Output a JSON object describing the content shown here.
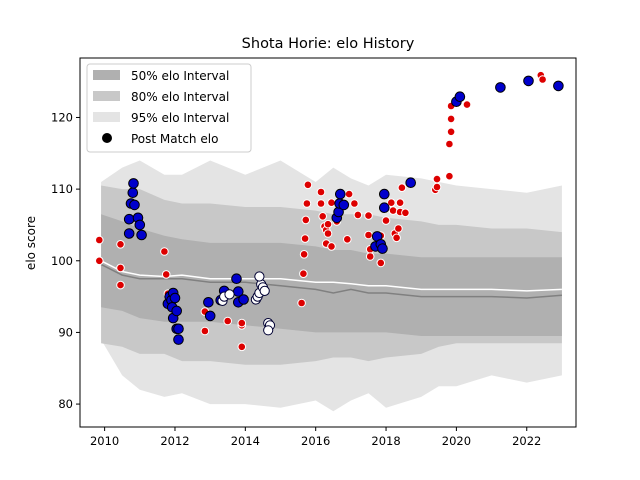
{
  "chart_data": {
    "type": "scatter",
    "title": "Shota Horie: elo History",
    "xlabel": "",
    "ylabel": "elo score",
    "xlim": [
      2009.3,
      2023.4
    ],
    "ylim": [
      76.8,
      128.3
    ],
    "x_ticks": [
      2010,
      2012,
      2014,
      2016,
      2018,
      2020,
      2022
    ],
    "y_ticks": [
      80,
      90,
      100,
      110,
      120
    ],
    "legend": {
      "position": "top-left",
      "entries": [
        "50% elo Interval",
        "80% elo Interval",
        "95% elo Interval",
        "Post Match elo"
      ]
    },
    "colors": {
      "band50": "#b0b0b0",
      "band80": "#c8c8c8",
      "band95": "#e4e4e4",
      "median_line": "#808080",
      "mean_line": "#ffffff",
      "win": "#0000cc",
      "loss": "#dd0000",
      "draw": "#ffffff"
    },
    "bands": {
      "x": [
        2009.9,
        2010.5,
        2011.0,
        2011.7,
        2012.2,
        2013.0,
        2014.0,
        2015.0,
        2016.0,
        2016.5,
        2017.0,
        2017.5,
        2018.0,
        2019.0,
        2019.5,
        2020.0,
        2021.0,
        2022.0,
        2023.0
      ],
      "p95_lo": [
        89.0,
        84.0,
        82.0,
        81.0,
        81.5,
        80.0,
        80.0,
        79.5,
        80.5,
        79.0,
        80.5,
        81.5,
        79.5,
        81.0,
        82.5,
        82.5,
        84.0,
        83.0,
        84.0
      ],
      "p95_hi": [
        111.0,
        113.0,
        114.0,
        112.0,
        112.0,
        114.0,
        112.0,
        114.0,
        111.0,
        113.0,
        111.5,
        110.5,
        112.0,
        111.5,
        111.0,
        110.5,
        110.0,
        109.5,
        110.5
      ],
      "p80_lo": [
        88.5,
        88.0,
        87.0,
        87.0,
        86.0,
        86.0,
        85.5,
        85.5,
        86.0,
        86.5,
        86.5,
        86.0,
        86.5,
        87.0,
        88.0,
        88.5,
        88.5,
        88.5,
        88.5
      ],
      "p80_hi": [
        110.5,
        110.0,
        110.0,
        108.5,
        108.0,
        108.0,
        107.5,
        107.5,
        107.0,
        106.5,
        106.5,
        106.5,
        106.0,
        105.5,
        105.0,
        105.0,
        104.5,
        104.5,
        104.0
      ],
      "p50_lo": [
        93.5,
        93.0,
        92.0,
        91.5,
        91.5,
        91.5,
        91.0,
        90.5,
        90.0,
        90.0,
        90.0,
        90.0,
        90.0,
        89.5,
        89.5,
        89.5,
        89.5,
        89.5,
        89.5
      ],
      "p50_hi": [
        106.5,
        105.5,
        104.5,
        103.5,
        103.0,
        102.5,
        102.5,
        102.5,
        102.0,
        101.5,
        101.5,
        101.0,
        101.0,
        100.5,
        100.5,
        100.5,
        100.5,
        100.5,
        100.5
      ],
      "median": [
        99.5,
        98.0,
        97.5,
        97.5,
        97.5,
        97.0,
        97.0,
        96.5,
        96.0,
        95.5,
        96.0,
        95.5,
        95.5,
        95.0,
        95.0,
        95.0,
        95.0,
        94.8,
        95.2
      ],
      "mean": [
        100.0,
        98.5,
        98.0,
        97.8,
        98.0,
        97.5,
        97.5,
        97.5,
        97.0,
        97.0,
        96.8,
        96.5,
        96.5,
        96.0,
        96.0,
        96.0,
        96.0,
        95.8,
        96.0
      ]
    },
    "series": [
      {
        "name": "win",
        "points": [
          [
            2010.7,
            105.8
          ],
          [
            2010.75,
            108.0
          ],
          [
            2010.8,
            109.5
          ],
          [
            2010.82,
            110.8
          ],
          [
            2010.85,
            107.8
          ],
          [
            2010.7,
            103.8
          ],
          [
            2010.95,
            106.0
          ],
          [
            2011.0,
            105.0
          ],
          [
            2011.05,
            103.6
          ],
          [
            2011.8,
            94.0
          ],
          [
            2011.85,
            95.0
          ],
          [
            2011.9,
            94.5
          ],
          [
            2011.92,
            93.5
          ],
          [
            2011.95,
            95.5
          ],
          [
            2012.0,
            94.8
          ],
          [
            2011.95,
            92.0
          ],
          [
            2012.05,
            93.0
          ],
          [
            2012.05,
            90.5
          ],
          [
            2012.1,
            90.5
          ],
          [
            2012.1,
            89.0
          ],
          [
            2012.95,
            94.2
          ],
          [
            2013.0,
            92.3
          ],
          [
            2013.3,
            94.5
          ],
          [
            2013.4,
            95.8
          ],
          [
            2013.75,
            97.5
          ],
          [
            2013.8,
            95.7
          ],
          [
            2013.8,
            94.2
          ],
          [
            2013.95,
            94.6
          ],
          [
            2016.6,
            106.0
          ],
          [
            2016.65,
            106.8
          ],
          [
            2016.68,
            108.0
          ],
          [
            2016.7,
            109.3
          ],
          [
            2016.8,
            107.8
          ],
          [
            2017.7,
            102.0
          ],
          [
            2017.75,
            103.4
          ],
          [
            2017.85,
            102.3
          ],
          [
            2017.9,
            101.7
          ],
          [
            2017.95,
            107.4
          ],
          [
            2017.95,
            109.3
          ],
          [
            2018.7,
            110.9
          ],
          [
            2020.0,
            122.2
          ],
          [
            2020.1,
            122.9
          ],
          [
            2021.25,
            124.2
          ],
          [
            2022.05,
            125.1
          ],
          [
            2022.9,
            124.4
          ]
        ]
      },
      {
        "name": "loss",
        "points": [
          [
            2009.85,
            102.9
          ],
          [
            2009.85,
            100.0
          ],
          [
            2010.45,
            102.3
          ],
          [
            2010.45,
            96.6
          ],
          [
            2010.45,
            99.0
          ],
          [
            2011.7,
            101.3
          ],
          [
            2011.75,
            98.1
          ],
          [
            2011.8,
            95.4
          ],
          [
            2012.85,
            90.2
          ],
          [
            2012.85,
            92.9
          ],
          [
            2013.5,
            91.6
          ],
          [
            2013.9,
            91.0
          ],
          [
            2013.9,
            91.3
          ],
          [
            2013.9,
            88.0
          ],
          [
            2015.6,
            94.1
          ],
          [
            2015.65,
            98.2
          ],
          [
            2015.67,
            100.9
          ],
          [
            2015.7,
            103.1
          ],
          [
            2015.72,
            105.7
          ],
          [
            2015.75,
            108.0
          ],
          [
            2015.78,
            110.6
          ],
          [
            2016.15,
            109.6
          ],
          [
            2016.15,
            108.0
          ],
          [
            2016.2,
            106.2
          ],
          [
            2016.25,
            104.8
          ],
          [
            2016.3,
            104.3
          ],
          [
            2016.35,
            103.8
          ],
          [
            2016.3,
            102.4
          ],
          [
            2016.35,
            105.1
          ],
          [
            2016.45,
            102.0
          ],
          [
            2016.45,
            108.1
          ],
          [
            2016.6,
            105.5
          ],
          [
            2016.9,
            103.0
          ],
          [
            2016.95,
            109.3
          ],
          [
            2017.1,
            108.0
          ],
          [
            2017.2,
            106.4
          ],
          [
            2017.5,
            106.3
          ],
          [
            2017.5,
            103.6
          ],
          [
            2017.55,
            101.6
          ],
          [
            2017.55,
            100.6
          ],
          [
            2017.85,
            99.7
          ],
          [
            2017.85,
            103.5
          ],
          [
            2018.0,
            105.6
          ],
          [
            2018.15,
            108.1
          ],
          [
            2018.2,
            107.0
          ],
          [
            2018.25,
            103.8
          ],
          [
            2018.3,
            103.2
          ],
          [
            2018.35,
            104.5
          ],
          [
            2018.4,
            106.8
          ],
          [
            2018.4,
            108.1
          ],
          [
            2018.45,
            110.2
          ],
          [
            2018.55,
            106.7
          ],
          [
            2019.4,
            109.9
          ],
          [
            2019.45,
            110.3
          ],
          [
            2019.45,
            111.4
          ],
          [
            2019.8,
            111.8
          ],
          [
            2019.8,
            116.3
          ],
          [
            2019.85,
            118.0
          ],
          [
            2019.85,
            119.8
          ],
          [
            2019.85,
            121.6
          ],
          [
            2020.3,
            121.8
          ],
          [
            2022.4,
            125.9
          ],
          [
            2022.45,
            125.3
          ]
        ]
      },
      {
        "name": "draw",
        "points": [
          [
            2013.35,
            94.4
          ],
          [
            2013.4,
            95.0
          ],
          [
            2013.55,
            95.3
          ],
          [
            2014.3,
            94.6
          ],
          [
            2014.35,
            95.0
          ],
          [
            2014.4,
            95.5
          ],
          [
            2014.45,
            96.7
          ],
          [
            2014.4,
            97.8
          ],
          [
            2014.5,
            96.3
          ],
          [
            2014.55,
            95.8
          ],
          [
            2014.65,
            91.3
          ],
          [
            2014.7,
            91.0
          ],
          [
            2014.65,
            90.3
          ]
        ]
      }
    ]
  }
}
